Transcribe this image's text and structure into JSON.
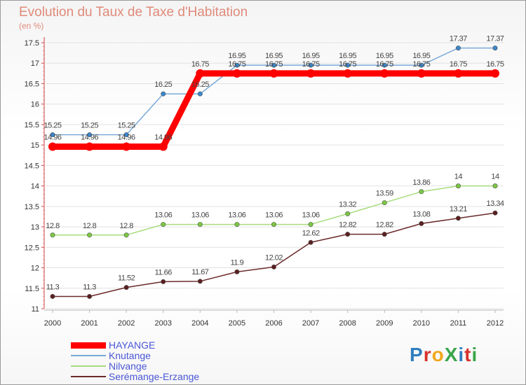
{
  "title": "Evolution du Taux de Taxe d'Habitation",
  "subtitle": "(en %)",
  "logo": {
    "text": "ProXiti",
    "letters": [
      {
        "ch": "P",
        "color": "#2f7fbf"
      },
      {
        "ch": "r",
        "color": "#d6332b"
      },
      {
        "ch": "o",
        "color": "#f0a81c"
      },
      {
        "ch": "X",
        "color": "#3aa54a"
      },
      {
        "ch": "i",
        "color": "#2f7fbf"
      },
      {
        "ch": "t",
        "color": "#d6332b"
      },
      {
        "ch": "i",
        "color": "#3aa54a"
      }
    ]
  },
  "chart_data": {
    "type": "line",
    "title": "Evolution du Taux de Taxe d'Habitation",
    "ylabel": "(en %)",
    "xlabel": "",
    "x": [
      2000,
      2001,
      2002,
      2003,
      2004,
      2005,
      2006,
      2007,
      2008,
      2009,
      2010,
      2011,
      2012
    ],
    "ylim": [
      11,
      17.5
    ],
    "yticks": [
      11,
      11.5,
      12,
      12.5,
      13,
      13.5,
      14,
      14.5,
      15,
      15.5,
      16,
      16.5,
      17,
      17.5
    ],
    "ytick_labels": [
      "11",
      "11.5",
      "12",
      "12.5",
      "13",
      "13.5",
      "14",
      "14.5",
      "15",
      "15.5",
      "16",
      "16.5",
      "17",
      "17.5"
    ],
    "grid": "horizontal",
    "legend_position": "bottom-left",
    "series": [
      {
        "name": "HAYANGE",
        "color": "#ff0000",
        "marker": "#ff0000",
        "bold": true,
        "values": [
          14.96,
          14.96,
          14.96,
          14.96,
          16.75,
          16.75,
          16.75,
          16.75,
          16.75,
          16.75,
          16.75,
          16.75,
          16.75
        ],
        "labels": [
          "14.96",
          "14.96",
          "14.96",
          "14.96",
          "16.75",
          "16.75",
          "16.75",
          "16.75",
          "16.75",
          "16.75",
          "16.75",
          "16.75",
          "16.75"
        ]
      },
      {
        "name": "Knutange",
        "color": "#7aaad8",
        "marker": "#3a87cc",
        "bold": false,
        "values": [
          15.25,
          15.25,
          15.25,
          16.25,
          16.25,
          16.95,
          16.95,
          16.95,
          16.95,
          16.95,
          16.95,
          17.37,
          17.37
        ],
        "labels": [
          "15.25",
          "15.25",
          "15.25",
          "16.25",
          "16.25",
          "16.95",
          "16.95",
          "16.95",
          "16.95",
          "16.95",
          "16.95",
          "17.37",
          "17.37"
        ]
      },
      {
        "name": "Nilvange",
        "color": "#a6dc7c",
        "marker": "#7cc743",
        "bold": false,
        "values": [
          12.8,
          12.8,
          12.8,
          13.06,
          13.06,
          13.06,
          13.06,
          13.06,
          13.32,
          13.59,
          13.86,
          14,
          14
        ],
        "labels": [
          "12.8",
          "12.8",
          "12.8",
          "13.06",
          "13.06",
          "13.06",
          "13.06",
          "13.06",
          "13.32",
          "13.59",
          "13.86",
          "14",
          "14"
        ]
      },
      {
        "name": "Serémange-Erzange",
        "color": "#6b2a2a",
        "marker": "#5a1f1f",
        "bold": false,
        "values": [
          11.3,
          11.3,
          11.52,
          11.66,
          11.67,
          11.9,
          12.02,
          12.62,
          12.82,
          12.82,
          13.08,
          13.21,
          13.34
        ],
        "labels": [
          "11.3",
          "11.3",
          "11.52",
          "11.66",
          "11.67",
          "11.9",
          "12.02",
          "12.62",
          "12.82",
          "12.82",
          "13.08",
          "13.21",
          "13.34"
        ]
      }
    ]
  }
}
